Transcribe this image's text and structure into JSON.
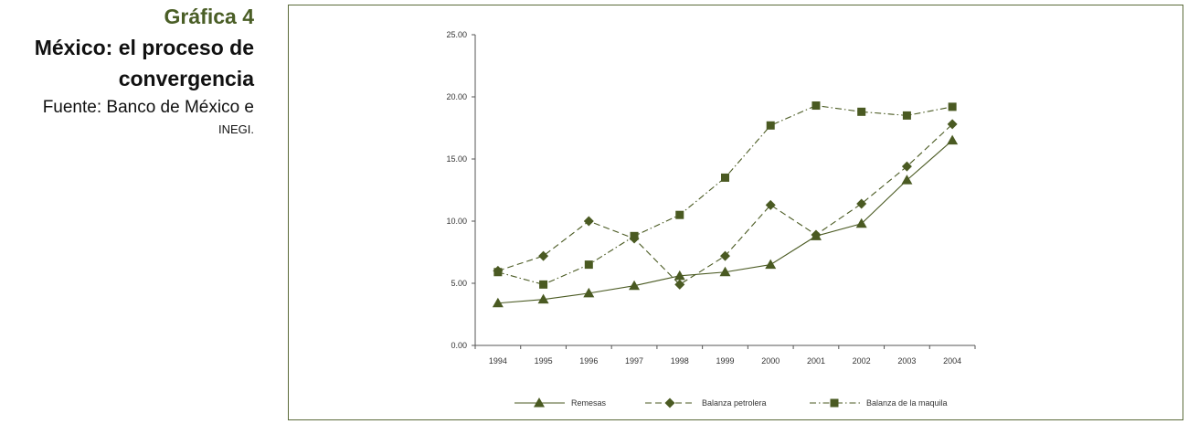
{
  "caption": {
    "number": "Gráfica 4",
    "title_line1": "México: el proceso de",
    "title_line2": "convergencia",
    "source_line1": "Fuente: Banco de México e",
    "source_line2": "INEGI."
  },
  "colors": {
    "series": "#4a5a22",
    "axis": "#555555",
    "frame": "#5b6b3a",
    "caption_accent": "#4a5e26"
  },
  "chart_data": {
    "type": "line",
    "categories": [
      "1994",
      "1995",
      "1996",
      "1997",
      "1998",
      "1999",
      "2000",
      "2001",
      "2002",
      "2003",
      "2004"
    ],
    "ylim": [
      0,
      25
    ],
    "yticks": [
      "0.00",
      "5.00",
      "10.00",
      "15.00",
      "20.00",
      "25.00"
    ],
    "grid": false,
    "legend_position": "bottom",
    "series": [
      {
        "name": "Remesas",
        "marker": "triangle",
        "dash": "solid",
        "values": [
          3.4,
          3.7,
          4.2,
          4.8,
          5.6,
          5.9,
          6.5,
          8.8,
          9.8,
          13.3,
          16.5
        ]
      },
      {
        "name": "Balanza petrolera",
        "marker": "diamond",
        "dash": "dashed",
        "values": [
          6.0,
          7.2,
          10.0,
          8.6,
          4.9,
          7.2,
          11.3,
          8.9,
          11.4,
          14.4,
          17.8
        ]
      },
      {
        "name": "Balanza de la maquila",
        "marker": "square",
        "dash": "dashdot",
        "values": [
          5.9,
          4.9,
          6.5,
          8.8,
          10.5,
          13.5,
          17.7,
          19.3,
          18.8,
          18.5,
          19.2
        ]
      }
    ]
  }
}
